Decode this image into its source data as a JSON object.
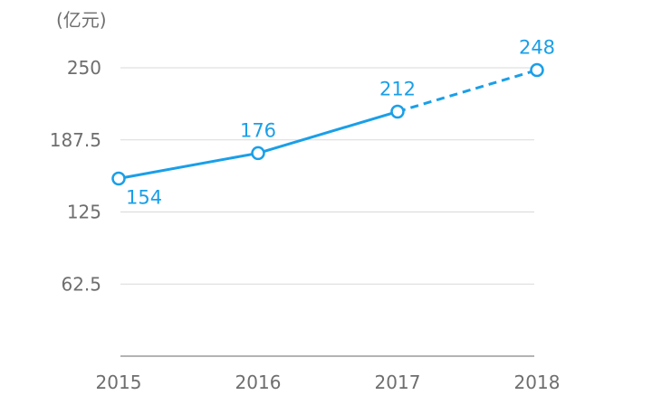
{
  "chart_data": {
    "type": "line",
    "unit_label": "(亿元)",
    "categories": [
      "2015",
      "2016",
      "2017",
      "2018"
    ],
    "series": [
      {
        "values": [
          154,
          176,
          212,
          248
        ],
        "forecast_from_index": 2
      }
    ],
    "ylim": [
      0,
      250
    ],
    "yticks": [
      62.5,
      125,
      187.5,
      250
    ],
    "ytick_labels": [
      "62.5",
      "125",
      "187.5",
      "250"
    ],
    "data_labels": [
      "154",
      "176",
      "212",
      "248"
    ],
    "grid": true,
    "legend": "none",
    "colors": {
      "series": "#1a9fe8",
      "grid": "#d9d9d9",
      "axis": "#9a9a9a",
      "tick": "#6e6e6e"
    }
  }
}
